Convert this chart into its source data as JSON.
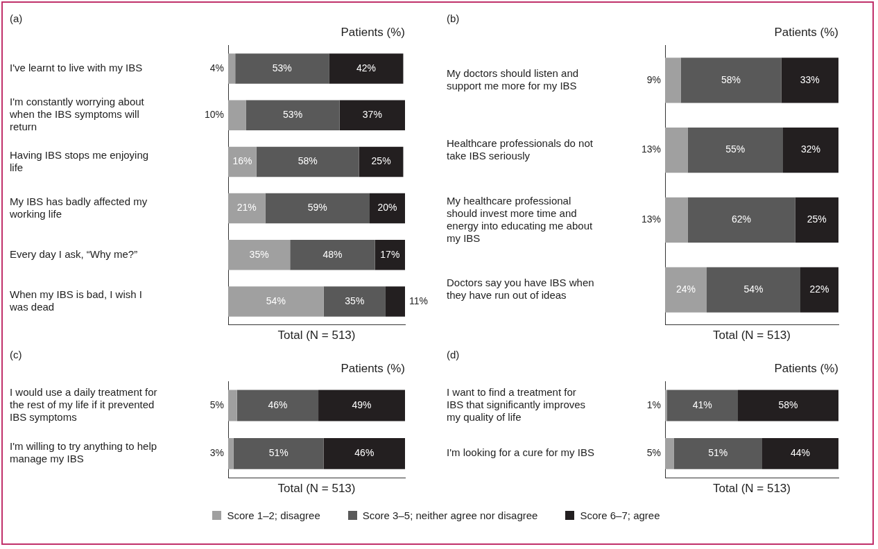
{
  "chart_data": [
    {
      "type": "bar",
      "orientation": "horizontal",
      "stacked": true,
      "title": "(a)",
      "subtitle": "Patients (%)",
      "xlabel": "Total (N = 513)",
      "legend": "bottom",
      "grid": false,
      "tick_labels": "y",
      "categories": [
        "I've learnt to live with my IBS",
        "I'm constantly worrying about when the IBS symptoms will return",
        "Having IBS stops me enjoying life",
        "My IBS has badly affected my working life",
        "Every day I ask, “Why me?”",
        "When my IBS is bad, I wish I was dead"
      ],
      "series": [
        {
          "name": "Score 1–2; disagree",
          "color": "#a0a0a0",
          "values": [
            4,
            10,
            16,
            21,
            35,
            54
          ],
          "value_labels": [
            "4%",
            "10%",
            "16%",
            "21%",
            "35%",
            "54%"
          ]
        },
        {
          "name": "Score 3–5; neither agree nor disagree",
          "color": "#595959",
          "values": [
            53,
            53,
            58,
            59,
            48,
            35
          ],
          "value_labels": [
            "53%",
            "53%",
            "58%",
            "59%",
            "48%",
            "35%"
          ]
        },
        {
          "name": "Score 6–7; agree",
          "color": "#231f20",
          "values": [
            42,
            37,
            25,
            20,
            17,
            11
          ],
          "value_labels": [
            "42%",
            "37%",
            "25%",
            "20%",
            "17%",
            "11%"
          ]
        }
      ]
    },
    {
      "type": "bar",
      "orientation": "horizontal",
      "stacked": true,
      "title": "(b)",
      "subtitle": "Patients (%)",
      "xlabel": "Total (N = 513)",
      "grid": false,
      "tick_labels": "y",
      "categories": [
        "My doctors should listen and support me more for my IBS",
        "Healthcare professionals do not take IBS seriously",
        "My healthcare professional should invest more time and energy into educating me about my IBS",
        "Doctors say you have IBS when they have run out of ideas"
      ],
      "series": [
        {
          "color": "#a0a0a0",
          "values": [
            9,
            13,
            13,
            24
          ],
          "value_labels": [
            "9%",
            "13%",
            "13%",
            "24%"
          ]
        },
        {
          "color": "#595959",
          "values": [
            58,
            55,
            62,
            54
          ],
          "value_labels": [
            "58%",
            "55%",
            "62%",
            "54%"
          ]
        },
        {
          "color": "#231f20",
          "values": [
            33,
            32,
            25,
            22
          ],
          "value_labels": [
            "33%",
            "32%",
            "25%",
            "22%"
          ]
        }
      ]
    },
    {
      "type": "bar",
      "orientation": "horizontal",
      "stacked": true,
      "title": "(c)",
      "subtitle": "Patients (%)",
      "xlabel": "Total (N = 513)",
      "grid": false,
      "tick_labels": "y",
      "categories": [
        "I would use a daily treatment for the rest of my life if it prevented IBS symptoms",
        "I'm willing to try anything to help manage my IBS"
      ],
      "series": [
        {
          "color": "#a0a0a0",
          "values": [
            5,
            3
          ],
          "value_labels": [
            "5%",
            "3%"
          ]
        },
        {
          "color": "#595959",
          "values": [
            46,
            51
          ],
          "value_labels": [
            "46%",
            "51%"
          ]
        },
        {
          "color": "#231f20",
          "values": [
            49,
            46
          ],
          "value_labels": [
            "49%",
            "46%"
          ]
        }
      ]
    },
    {
      "type": "bar",
      "orientation": "horizontal",
      "stacked": true,
      "title": "(d)",
      "subtitle": "Patients (%)",
      "xlabel": "Total (N = 513)",
      "grid": false,
      "tick_labels": "y",
      "categories": [
        "I want to find a treatment for IBS that significantly improves my quality of life",
        "I'm looking for a cure for my IBS"
      ],
      "series": [
        {
          "color": "#a0a0a0",
          "values": [
            1,
            5
          ],
          "value_labels": [
            "1%",
            "5%"
          ]
        },
        {
          "color": "#595959",
          "values": [
            41,
            51
          ],
          "value_labels": [
            "41%",
            "51%"
          ]
        },
        {
          "color": "#231f20",
          "values": [
            58,
            44
          ],
          "value_labels": [
            "58%",
            "44%"
          ]
        }
      ]
    }
  ]
}
